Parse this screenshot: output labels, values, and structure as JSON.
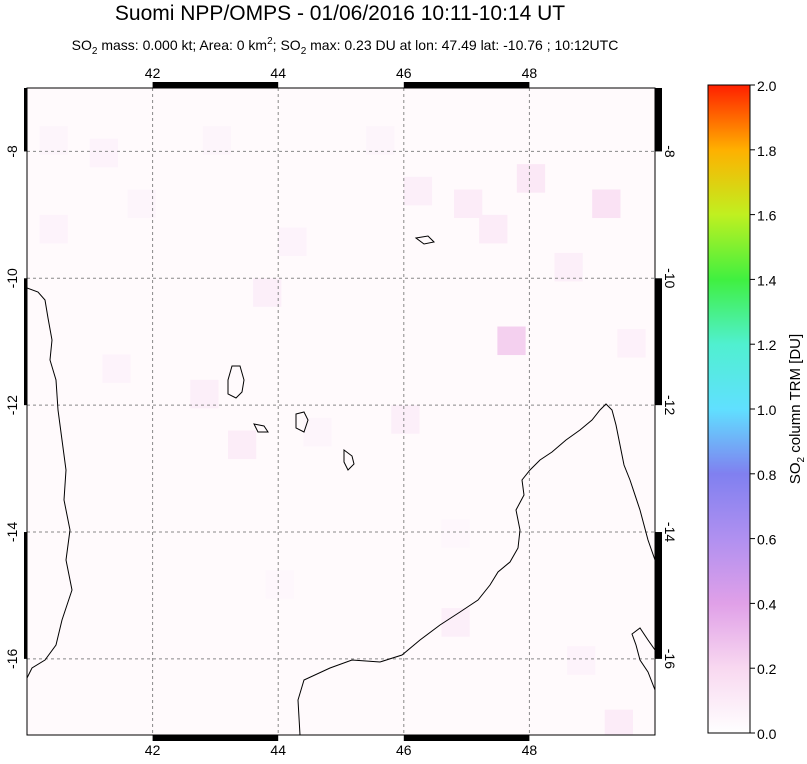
{
  "chart_data": {
    "type": "map",
    "title": "Suomi NPP/OMPS - 01/06/2016 10:11-10:14 UT",
    "subtitle_parts": [
      "SO",
      "2",
      " mass: 0.000 kt; Area: 0 km",
      "2",
      "; SO",
      "2",
      " max: 0.23 DU at lon: 47.49 lat: -10.76 ; 10:12UTC"
    ],
    "xlim": [
      40,
      50
    ],
    "ylim": [
      -17.2,
      -7
    ],
    "xticks": [
      42,
      44,
      46,
      48
    ],
    "yticks": [
      -8,
      -10,
      -12,
      -14,
      -16
    ],
    "grid": true,
    "colorbar": {
      "label_parts": [
        "SO",
        "2",
        " column TRM [DU]"
      ],
      "lim": [
        0,
        2
      ],
      "ticks": [
        {
          "value": 0,
          "label": "0.0"
        },
        {
          "value": 0.2,
          "label": "0.2"
        },
        {
          "value": 0.4,
          "label": "0.4"
        },
        {
          "value": 0.6,
          "label": "0.6"
        },
        {
          "value": 0.8,
          "label": "0.8"
        },
        {
          "value": 1,
          "label": "1.0"
        },
        {
          "value": 1.2,
          "label": "1.2"
        },
        {
          "value": 1.4,
          "label": "1.4"
        },
        {
          "value": 1.6,
          "label": "1.6"
        },
        {
          "value": 1.8,
          "label": "1.8"
        },
        {
          "value": 2,
          "label": "2.0"
        }
      ]
    },
    "cells": {
      "lon": [
        40.2,
        41.0,
        41.6,
        42.8,
        43.6,
        44.0,
        45.4,
        46.0,
        46.8,
        47.2,
        47.49,
        47.8,
        48.4,
        49.0,
        49.4,
        40.2,
        41.2,
        42.6,
        43.2,
        44.4,
        45.8,
        46.6,
        48.6,
        49.2,
        43.8,
        46.6
      ],
      "lat": [
        -7.6,
        -7.8,
        -8.6,
        -7.6,
        -10.0,
        -9.2,
        -7.6,
        -8.4,
        -8.6,
        -9.0,
        -10.76,
        -8.2,
        -9.6,
        -8.6,
        -10.8,
        -9.0,
        -11.2,
        -11.6,
        -12.4,
        -12.2,
        -12.0,
        -15.2,
        -15.8,
        -16.8,
        -14.6,
        -13.8
      ],
      "values": [
        0.05,
        0.06,
        0.05,
        0.05,
        0.08,
        0.06,
        0.05,
        0.08,
        0.1,
        0.1,
        0.23,
        0.12,
        0.08,
        0.15,
        0.07,
        0.06,
        0.06,
        0.08,
        0.09,
        0.05,
        0.08,
        0.08,
        0.06,
        0.1,
        0.04,
        0.04
      ]
    }
  }
}
